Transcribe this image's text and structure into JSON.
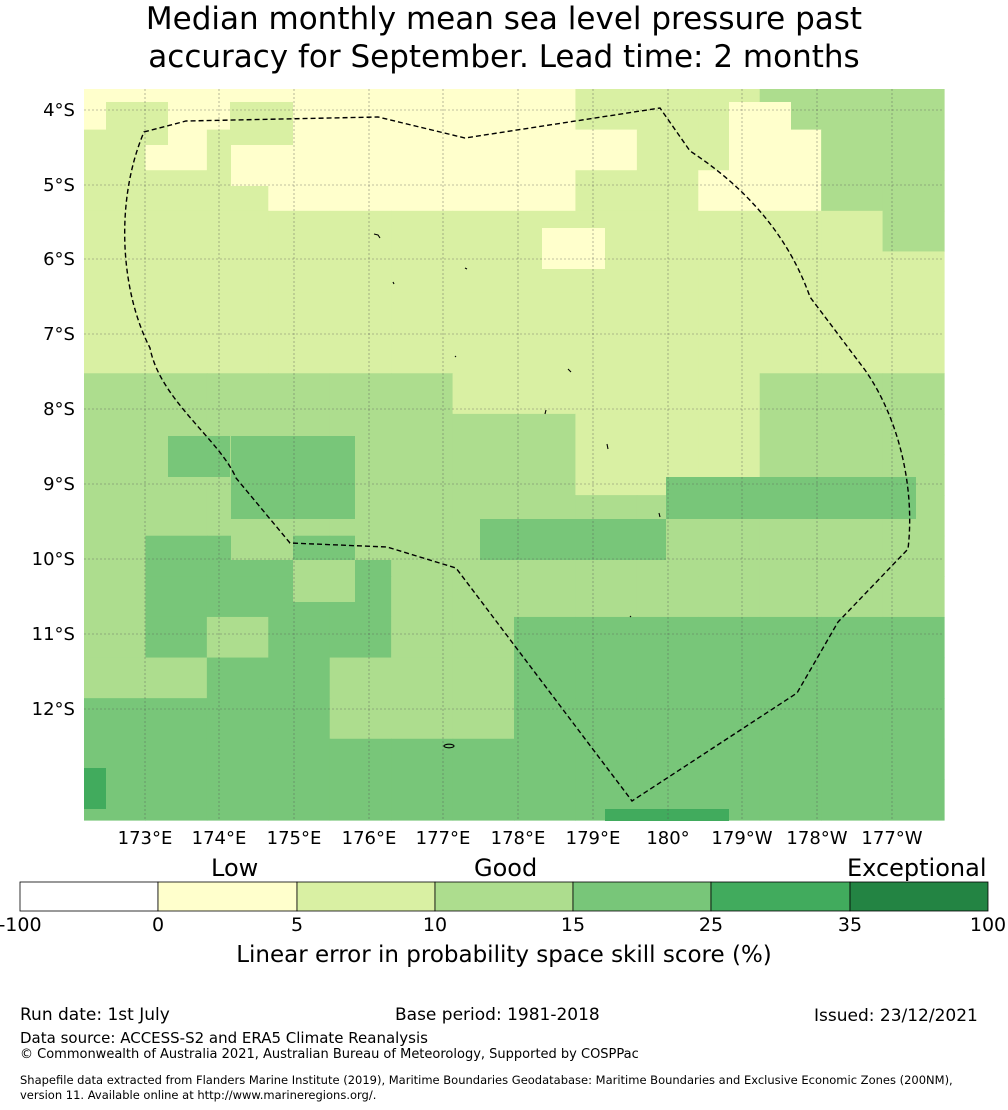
{
  "title": {
    "line1": "Median monthly mean sea level pressure past",
    "line2": "accuracy for September. Lead time: 2 months"
  },
  "map": {
    "lat_labels": [
      "4°S",
      "5°S",
      "6°S",
      "7°S",
      "8°S",
      "9°S",
      "10°S",
      "11°S",
      "12°S"
    ],
    "lon_labels": [
      "173°E",
      "174°E",
      "175°E",
      "176°E",
      "177°E",
      "178°E",
      "179°E",
      "180°",
      "179°W",
      "178°W",
      "177°W"
    ]
  },
  "colorbar": {
    "categories": [
      "Low",
      "Good",
      "Exceptional"
    ],
    "ticks": [
      "-100",
      "0",
      "5",
      "10",
      "15",
      "25",
      "35",
      "100"
    ],
    "colors": [
      "#ffffff",
      "#ffffcc",
      "#d9f0a3",
      "#addd8e",
      "#78c679",
      "#41ab5d",
      "#238443"
    ],
    "label": "Linear error in probability space skill score (%)"
  },
  "footer": {
    "run_date": "Run date: 1st July",
    "base_period": "Base period: 1981-2018",
    "issued": "Issued: 23/12/2021",
    "data_source": "Data source: ACCESS-S2 and ERA5 Climate Reanalysis",
    "copyright": "© Commonwealth of Australia 2021, Australian Bureau of Meteorology, Supported by COSPPac",
    "shapefile_line1": "Shapefile data extracted from Flanders Marine Institute (2019), Maritime Boundaries Geodatabase: Maritime Boundaries and Exclusive Economic Zones (200NM),",
    "shapefile_line2": "version 11. Available online at http://www.marineregions.org/."
  }
}
